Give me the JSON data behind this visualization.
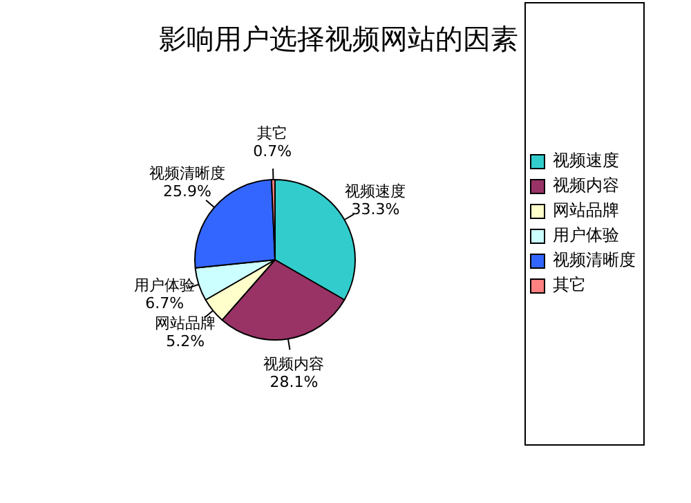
{
  "chart_data": {
    "type": "pie",
    "title": "影响用户选择视频网站的因素",
    "categories": [
      "视频速度",
      "视频内容",
      "网站品牌",
      "用户体验",
      "视频清晰度",
      "其它"
    ],
    "values": [
      33.3,
      28.1,
      5.2,
      6.7,
      25.9,
      0.7
    ],
    "value_labels": [
      "33.3%",
      "28.1%",
      "5.2%",
      "6.7%",
      "25.9%",
      "0.7%"
    ],
    "colors": [
      "#33cccc",
      "#993366",
      "#ffffcc",
      "#ccffff",
      "#3366ff",
      "#ff8080"
    ],
    "legend": "right"
  }
}
